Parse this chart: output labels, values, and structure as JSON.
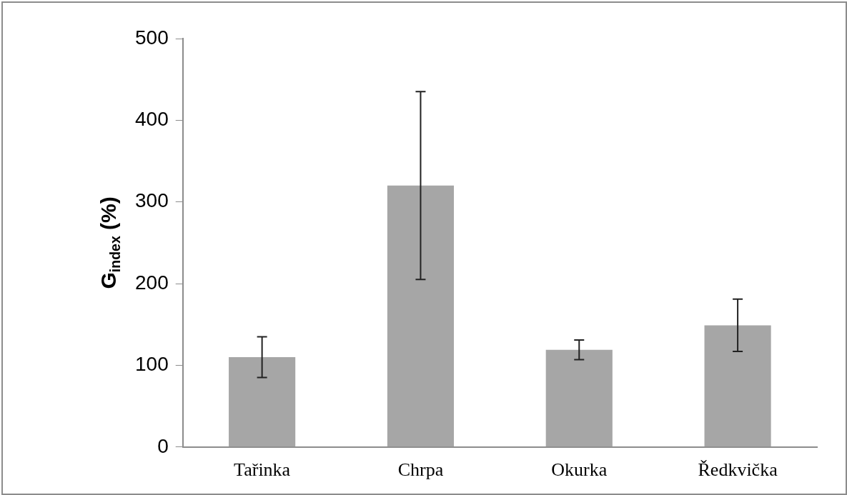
{
  "chart_data": {
    "type": "bar",
    "ylabel": "G$_{index}$ (%)",
    "categories": [
      "Tařinka",
      "Chrpa",
      "Okurka",
      "Ředkvička"
    ],
    "values": [
      110,
      320,
      119,
      149
    ],
    "errors": [
      25,
      115,
      12,
      32
    ],
    "color": "#a6a6a6",
    "ylim": [
      0,
      500
    ],
    "yticks": [
      0,
      100,
      200,
      300,
      400,
      500
    ],
    "grid": false,
    "legend": false
  }
}
